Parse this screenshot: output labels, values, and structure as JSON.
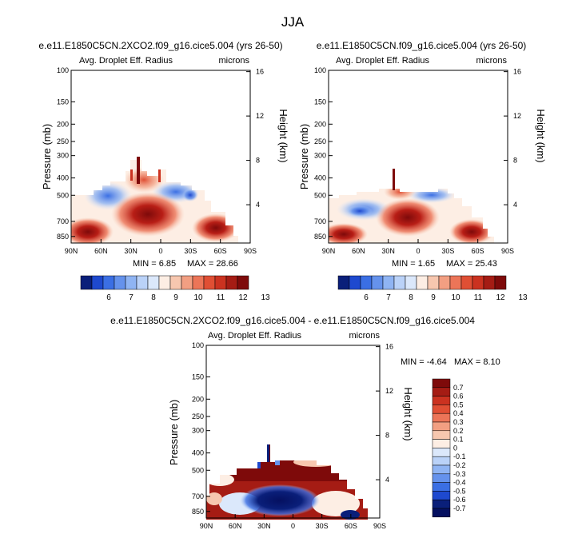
{
  "figure": {
    "title": "JJA"
  },
  "chart_data": [
    {
      "type": "heatmap",
      "title": "e.e11.E1850C5CN.2XCO2.f09_g16.cice5.004 (yrs 26-50)",
      "left_label": "Avg. Droplet Eff. Radius",
      "units": "microns",
      "ylabel": "Pressure (mb)",
      "y2label": "Height (km)",
      "x_ticks": [
        "90N",
        "60N",
        "30N",
        "0",
        "30S",
        "60S",
        "90S"
      ],
      "y_ticks": [
        "100",
        "150",
        "200",
        "250",
        "300",
        "400",
        "500",
        "700",
        "850"
      ],
      "y2_ticks": [
        "16",
        "12",
        "8",
        "4"
      ],
      "min_text": "MIN = 6.85",
      "max_text": "MAX = 28.66",
      "colorbar_levels": [
        "6",
        "7",
        "8",
        "9",
        "10",
        "11",
        "12",
        "13"
      ]
    },
    {
      "type": "heatmap",
      "title": "e.e11.E1850C5CN.f09_g16.cice5.004 (yrs 26-50)",
      "left_label": "Avg. Droplet Eff. Radius",
      "units": "microns",
      "ylabel": "Pressure (mb)",
      "y2label": "Height (km)",
      "x_ticks": [
        "90N",
        "60N",
        "30N",
        "0",
        "30S",
        "60S",
        "90S"
      ],
      "y_ticks": [
        "100",
        "150",
        "200",
        "250",
        "300",
        "400",
        "500",
        "700",
        "850"
      ],
      "y2_ticks": [
        "16",
        "12",
        "8",
        "4"
      ],
      "min_text": "MIN = 1.65",
      "max_text": "MAX = 25.43",
      "colorbar_levels": [
        "6",
        "7",
        "8",
        "9",
        "10",
        "11",
        "12",
        "13"
      ]
    },
    {
      "type": "heatmap",
      "title": "e.e11.E1850C5CN.2XCO2.f09_g16.cice5.004 - e.e11.E1850C5CN.f09_g16.cice5.004",
      "left_label": "Avg. Droplet Eff. Radius",
      "units": "microns",
      "ylabel": "Pressure (mb)",
      "y2label": "Height (km)",
      "x_ticks": [
        "90N",
        "60N",
        "30N",
        "0",
        "30S",
        "60S",
        "90S"
      ],
      "y_ticks": [
        "100",
        "150",
        "200",
        "250",
        "300",
        "400",
        "500",
        "700",
        "850"
      ],
      "y2_ticks": [
        "16",
        "12",
        "8",
        "4"
      ],
      "min_text": "MIN = -4.64",
      "max_text": "MAX = 8.10",
      "colorbar_levels": [
        "0.7",
        "0.6",
        "0.5",
        "0.4",
        "0.3",
        "0.2",
        "0.1",
        "0",
        "-0.1",
        "-0.2",
        "-0.3",
        "-0.4",
        "-0.5",
        "-0.6",
        "-0.7"
      ]
    }
  ],
  "colors": {
    "seq_scale": [
      "#0a1f7a",
      "#1e49cf",
      "#3b6fe4",
      "#6592ec",
      "#8fb4f3",
      "#bad2f8",
      "#dbe8fb",
      "#fdeee4",
      "#f7c7af",
      "#f29f82",
      "#ec7558",
      "#e04f34",
      "#cb3220",
      "#a51c14",
      "#7e0a0a"
    ],
    "div_scale": [
      "#7e0a0a",
      "#a51c14",
      "#cb3220",
      "#e04f34",
      "#ec7558",
      "#f29f82",
      "#f7c7af",
      "#fdeee4",
      "#dbe8fb",
      "#bad2f8",
      "#8fb4f3",
      "#6592ec",
      "#3b6fe4",
      "#1e49cf",
      "#0a1f7a",
      "#051060"
    ],
    "background": "#ffffff"
  }
}
